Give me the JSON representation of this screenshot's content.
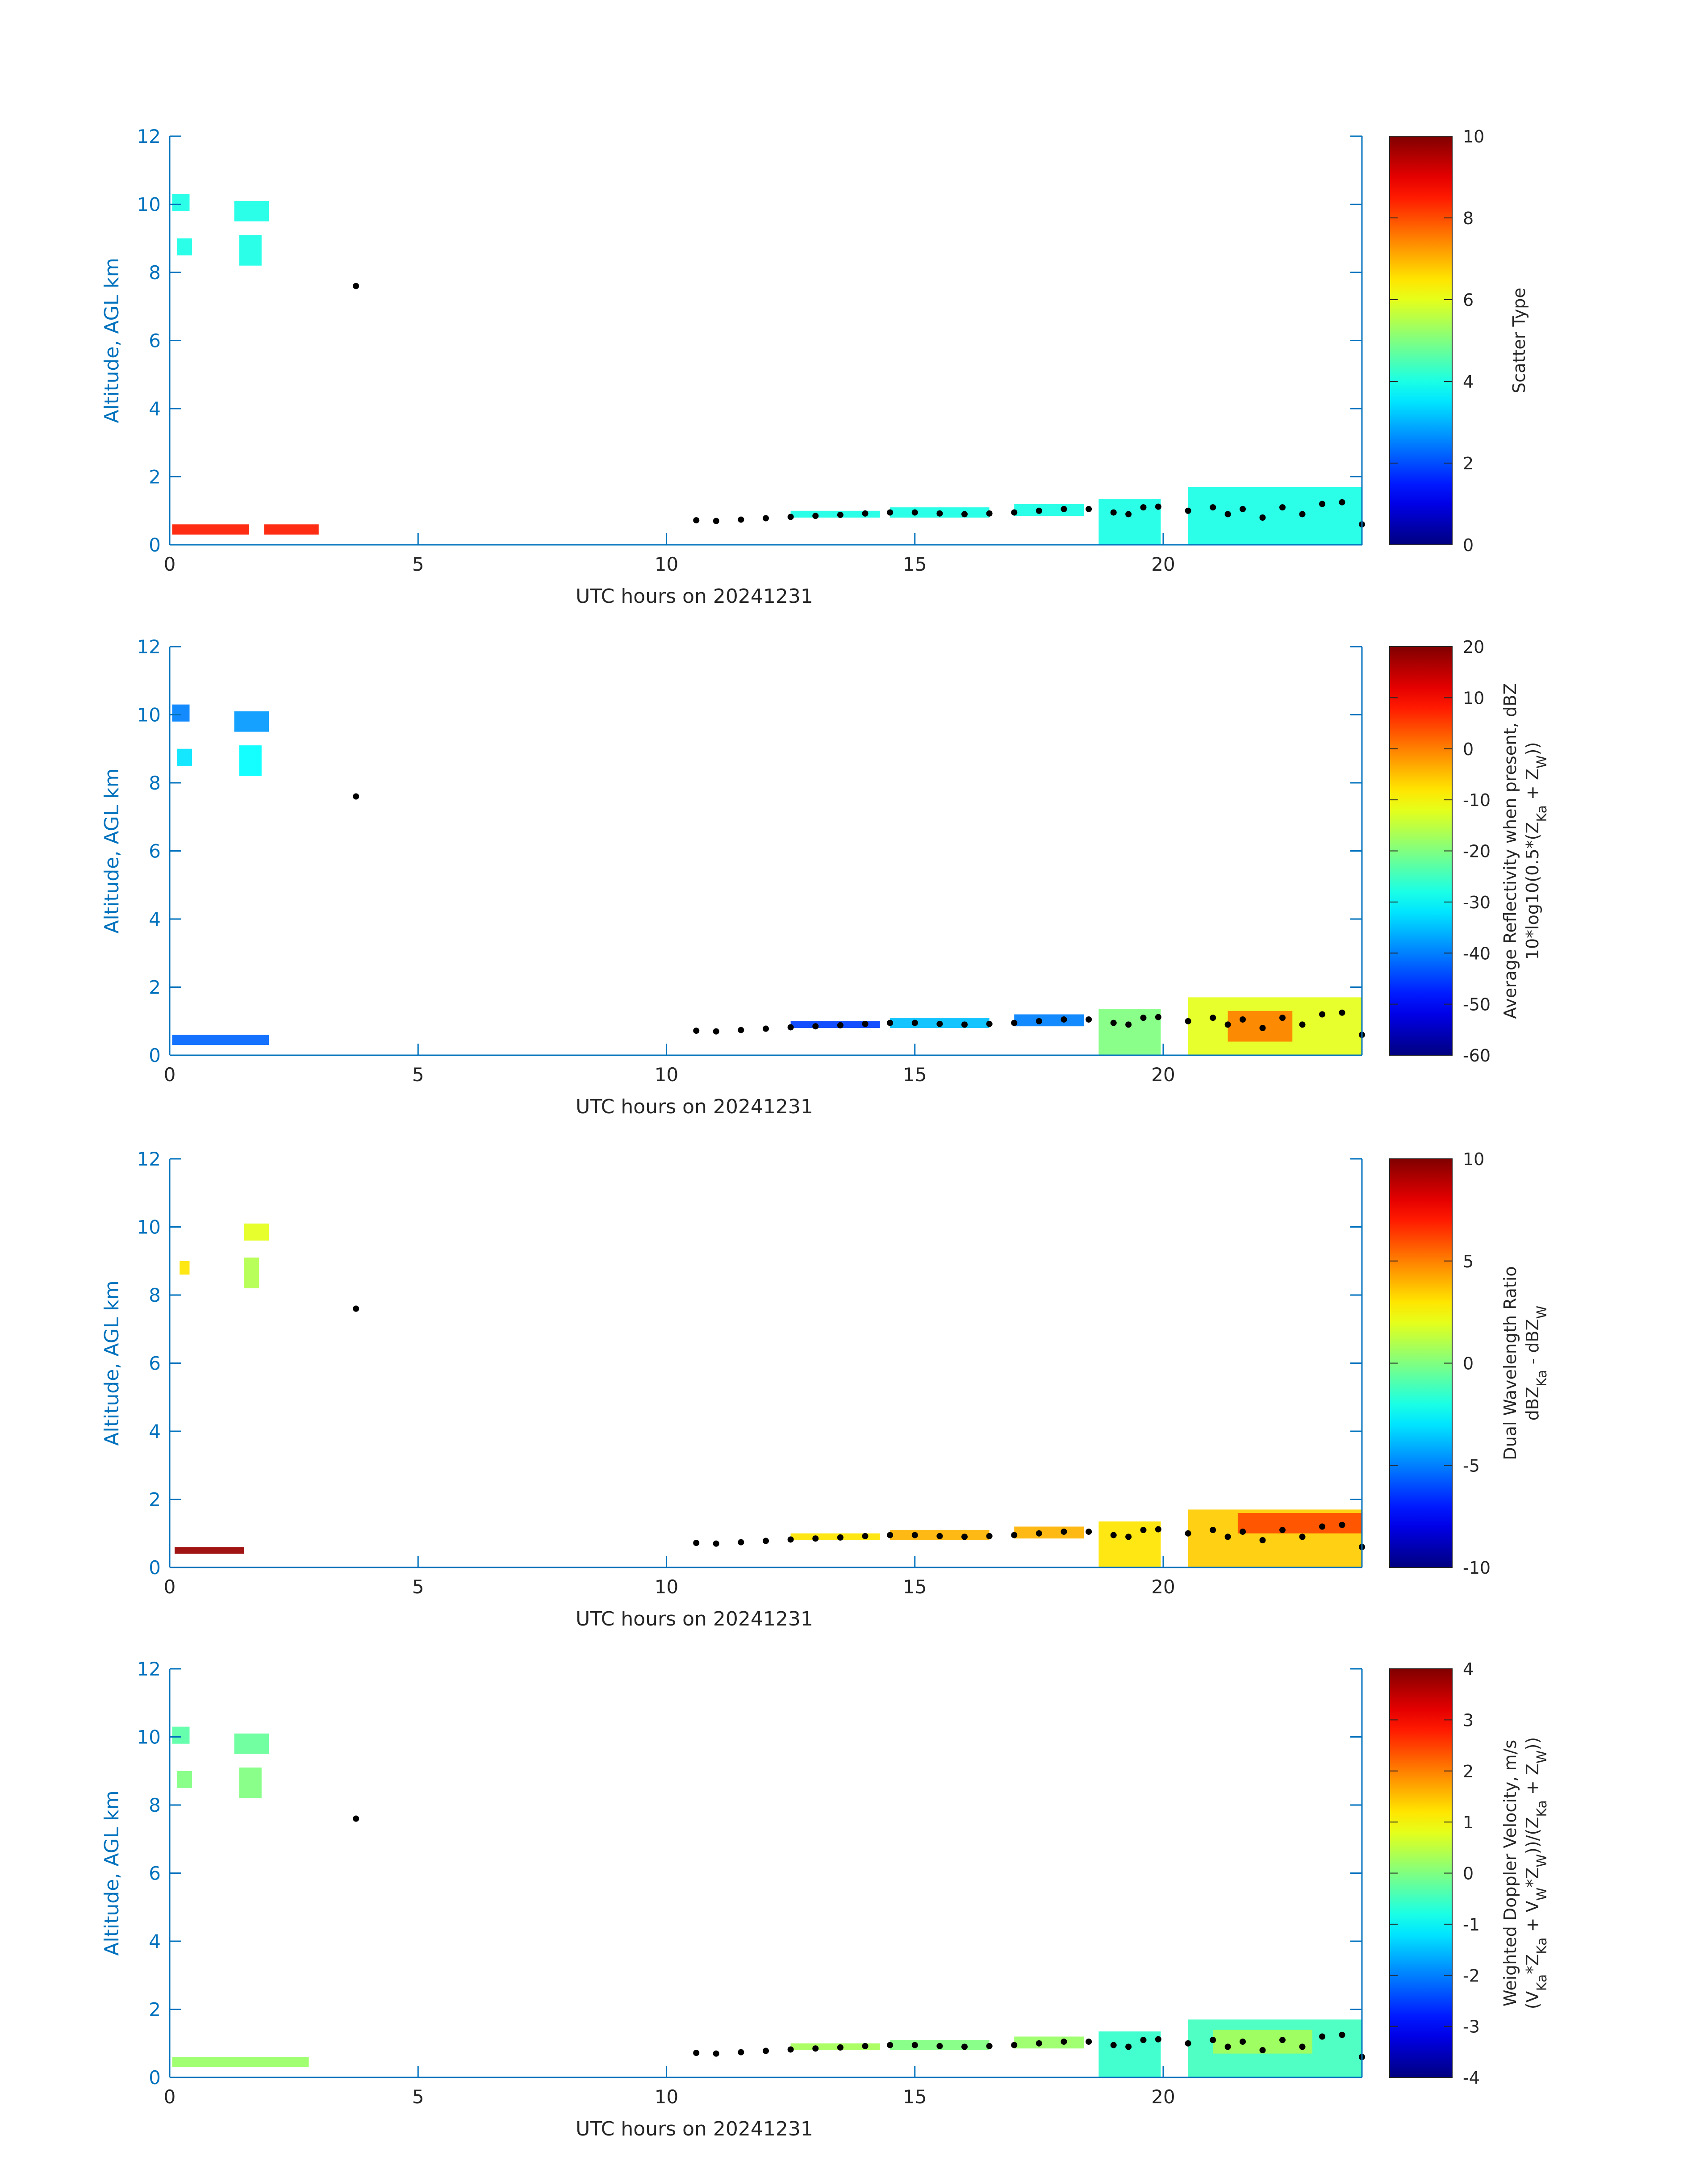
{
  "figure": {
    "background": "#ffffff",
    "axis_color": "#0072bd",
    "cloud_base_color": "#000000"
  },
  "chart_data": [
    {
      "type": "heatmap",
      "xlabel": "UTC hours on 20241231",
      "ylabel": "Altitude, AGL km",
      "xlim": [
        0,
        24
      ],
      "ylim": [
        0,
        12
      ],
      "xticks": [
        "0",
        "5",
        "10",
        "15",
        "20"
      ],
      "yticks": [
        "0",
        "2",
        "4",
        "6",
        "8",
        "10",
        "12"
      ],
      "colorbar": {
        "colormap": "jet",
        "range": [
          0,
          10
        ],
        "ticks": [
          "0",
          "2",
          "4",
          "6",
          "8",
          "10"
        ],
        "label_lines": [
          "Scatter Type"
        ]
      },
      "regions": [
        {
          "x": [
            0.05,
            0.4
          ],
          "y": [
            9.8,
            10.3
          ],
          "value": 4
        },
        {
          "x": [
            0.15,
            0.45
          ],
          "y": [
            8.5,
            9.0
          ],
          "value": 4
        },
        {
          "x": [
            1.3,
            2.0
          ],
          "y": [
            9.5,
            10.1
          ],
          "value": 4
        },
        {
          "x": [
            1.4,
            1.85
          ],
          "y": [
            8.2,
            9.1
          ],
          "value": 4
        },
        {
          "x": [
            0.05,
            1.6
          ],
          "y": [
            0.3,
            0.6
          ],
          "value": 8.5
        },
        {
          "x": [
            1.9,
            3.0
          ],
          "y": [
            0.3,
            0.6
          ],
          "value": 8.5
        },
        {
          "x": [
            12.5,
            14.3
          ],
          "y": [
            0.8,
            1.0
          ],
          "value": 4
        },
        {
          "x": [
            14.5,
            16.5
          ],
          "y": [
            0.8,
            1.1
          ],
          "value": 4
        },
        {
          "x": [
            17.0,
            18.4
          ],
          "y": [
            0.85,
            1.2
          ],
          "value": 4
        },
        {
          "x": [
            18.7,
            19.95
          ],
          "y": [
            0.0,
            1.35
          ],
          "value": 4
        },
        {
          "x": [
            20.5,
            24.0
          ],
          "y": [
            0.0,
            1.7
          ],
          "value": 4
        }
      ],
      "cloud_base": {
        "x": [
          3.75,
          10.6,
          11.0,
          11.5,
          12.0,
          12.5,
          13.0,
          13.5,
          14.0,
          14.5,
          15.0,
          15.5,
          16.0,
          16.5,
          17.0,
          17.5,
          18.0,
          18.5,
          19.0,
          19.3,
          19.6,
          19.9,
          20.5,
          21.0,
          21.3,
          21.6,
          22.0,
          22.4,
          22.8,
          23.2,
          23.6,
          24.0
        ],
        "y": [
          7.6,
          0.72,
          0.7,
          0.74,
          0.78,
          0.82,
          0.85,
          0.88,
          0.92,
          0.95,
          0.95,
          0.92,
          0.9,
          0.92,
          0.95,
          1.0,
          1.05,
          1.05,
          0.95,
          0.9,
          1.1,
          1.12,
          1.0,
          1.1,
          0.9,
          1.05,
          0.8,
          1.1,
          0.9,
          1.2,
          1.25,
          0.6
        ]
      }
    },
    {
      "type": "heatmap",
      "xlabel": "UTC hours on 20241231",
      "ylabel": "Altitude, AGL km",
      "xlim": [
        0,
        24
      ],
      "ylim": [
        0,
        12
      ],
      "xticks": [
        "0",
        "5",
        "10",
        "15",
        "20"
      ],
      "yticks": [
        "0",
        "2",
        "4",
        "6",
        "8",
        "10",
        "12"
      ],
      "colorbar": {
        "colormap": "jet",
        "range": [
          -60,
          20
        ],
        "ticks": [
          "-60",
          "-50",
          "-40",
          "-30",
          "-20",
          "-10",
          "0",
          "10",
          "20"
        ],
        "label_lines": [
          "Average Reflectivity when present, dBZ",
          "10*log10(0.5*(Z_Ka + Z_W))"
        ]
      },
      "regions": [
        {
          "x": [
            0.05,
            0.4
          ],
          "y": [
            9.8,
            10.3
          ],
          "value": -40
        },
        {
          "x": [
            0.15,
            0.45
          ],
          "y": [
            8.5,
            9.0
          ],
          "value": -32
        },
        {
          "x": [
            1.3,
            2.0
          ],
          "y": [
            9.5,
            10.1
          ],
          "value": -38
        },
        {
          "x": [
            1.4,
            1.85
          ],
          "y": [
            8.2,
            9.1
          ],
          "value": -30
        },
        {
          "x": [
            0.05,
            2.0
          ],
          "y": [
            0.3,
            0.6
          ],
          "value": -42
        },
        {
          "x": [
            12.5,
            14.3
          ],
          "y": [
            0.8,
            1.0
          ],
          "value": -45
        },
        {
          "x": [
            14.5,
            16.5
          ],
          "y": [
            0.8,
            1.1
          ],
          "value": -35
        },
        {
          "x": [
            17.0,
            18.4
          ],
          "y": [
            0.85,
            1.2
          ],
          "value": -40
        },
        {
          "x": [
            18.7,
            19.95
          ],
          "y": [
            0.0,
            1.35
          ],
          "value": -20
        },
        {
          "x": [
            20.5,
            24.0
          ],
          "y": [
            0.0,
            1.7
          ],
          "value": -12
        },
        {
          "x": [
            21.3,
            22.6
          ],
          "y": [
            0.4,
            1.3
          ],
          "value": 0
        }
      ],
      "cloud_base": {
        "x": [
          3.75,
          10.6,
          11.0,
          11.5,
          12.0,
          12.5,
          13.0,
          13.5,
          14.0,
          14.5,
          15.0,
          15.5,
          16.0,
          16.5,
          17.0,
          17.5,
          18.0,
          18.5,
          19.0,
          19.3,
          19.6,
          19.9,
          20.5,
          21.0,
          21.3,
          21.6,
          22.0,
          22.4,
          22.8,
          23.2,
          23.6,
          24.0
        ],
        "y": [
          7.6,
          0.72,
          0.7,
          0.74,
          0.78,
          0.82,
          0.85,
          0.88,
          0.92,
          0.95,
          0.95,
          0.92,
          0.9,
          0.92,
          0.95,
          1.0,
          1.05,
          1.05,
          0.95,
          0.9,
          1.1,
          1.12,
          1.0,
          1.1,
          0.9,
          1.05,
          0.8,
          1.1,
          0.9,
          1.2,
          1.25,
          0.6
        ]
      }
    },
    {
      "type": "heatmap",
      "xlabel": "UTC hours on 20241231",
      "ylabel": "Altitude, AGL km",
      "xlim": [
        0,
        24
      ],
      "ylim": [
        0,
        12
      ],
      "xticks": [
        "0",
        "5",
        "10",
        "15",
        "20"
      ],
      "yticks": [
        "0",
        "2",
        "4",
        "6",
        "8",
        "10",
        "12"
      ],
      "colorbar": {
        "colormap": "jet",
        "range": [
          -10,
          10
        ],
        "ticks": [
          "-10",
          "-5",
          "0",
          "5",
          "10"
        ],
        "label_lines": [
          "Dual Wavelength Ratio",
          "dBZ_Ka - dBZ_W"
        ]
      },
      "regions": [
        {
          "x": [
            0.2,
            0.4
          ],
          "y": [
            8.6,
            9.0
          ],
          "value": 3
        },
        {
          "x": [
            1.5,
            2.0
          ],
          "y": [
            9.6,
            10.1
          ],
          "value": 2
        },
        {
          "x": [
            1.5,
            1.8
          ],
          "y": [
            8.2,
            9.1
          ],
          "value": 1
        },
        {
          "x": [
            0.1,
            1.5
          ],
          "y": [
            0.4,
            0.6
          ],
          "value": 9.5
        },
        {
          "x": [
            12.5,
            14.3
          ],
          "y": [
            0.8,
            1.0
          ],
          "value": 3
        },
        {
          "x": [
            14.5,
            16.5
          ],
          "y": [
            0.8,
            1.1
          ],
          "value": 4
        },
        {
          "x": [
            17.0,
            18.4
          ],
          "y": [
            0.85,
            1.2
          ],
          "value": 4
        },
        {
          "x": [
            18.7,
            19.95
          ],
          "y": [
            0.0,
            1.35
          ],
          "value": 3
        },
        {
          "x": [
            20.5,
            24.0
          ],
          "y": [
            0.0,
            1.7
          ],
          "value": 3.5
        },
        {
          "x": [
            21.5,
            24.0
          ],
          "y": [
            1.0,
            1.6
          ],
          "value": 6
        }
      ],
      "cloud_base": {
        "x": [
          3.75,
          10.6,
          11.0,
          11.5,
          12.0,
          12.5,
          13.0,
          13.5,
          14.0,
          14.5,
          15.0,
          15.5,
          16.0,
          16.5,
          17.0,
          17.5,
          18.0,
          18.5,
          19.0,
          19.3,
          19.6,
          19.9,
          20.5,
          21.0,
          21.3,
          21.6,
          22.0,
          22.4,
          22.8,
          23.2,
          23.6,
          24.0
        ],
        "y": [
          7.6,
          0.72,
          0.7,
          0.74,
          0.78,
          0.82,
          0.85,
          0.88,
          0.92,
          0.95,
          0.95,
          0.92,
          0.9,
          0.92,
          0.95,
          1.0,
          1.05,
          1.05,
          0.95,
          0.9,
          1.1,
          1.12,
          1.0,
          1.1,
          0.9,
          1.05,
          0.8,
          1.1,
          0.9,
          1.2,
          1.25,
          0.6
        ]
      }
    },
    {
      "type": "heatmap",
      "xlabel": "UTC hours on 20241231",
      "ylabel": "Altitude, AGL km",
      "xlim": [
        0,
        24
      ],
      "ylim": [
        0,
        12
      ],
      "xticks": [
        "0",
        "5",
        "10",
        "15",
        "20"
      ],
      "yticks": [
        "0",
        "2",
        "4",
        "6",
        "8",
        "10",
        "12"
      ],
      "colorbar": {
        "colormap": "jet",
        "range": [
          -4,
          4
        ],
        "ticks": [
          "-4",
          "-3",
          "-2",
          "-1",
          "0",
          "1",
          "2",
          "3",
          "4"
        ],
        "label_lines": [
          "Weighted Doppler Velocity, m/s",
          "(V_Ka*Z_Ka + V_W*Z_W))/(Z_Ka + Z_W))"
        ]
      },
      "regions": [
        {
          "x": [
            0.05,
            0.4
          ],
          "y": [
            9.8,
            10.3
          ],
          "value": -0.3
        },
        {
          "x": [
            0.15,
            0.45
          ],
          "y": [
            8.5,
            9.0
          ],
          "value": 0
        },
        {
          "x": [
            1.3,
            2.0
          ],
          "y": [
            9.5,
            10.1
          ],
          "value": -0.2
        },
        {
          "x": [
            1.4,
            1.85
          ],
          "y": [
            8.2,
            9.1
          ],
          "value": 0
        },
        {
          "x": [
            0.05,
            2.8
          ],
          "y": [
            0.3,
            0.6
          ],
          "value": 0.2
        },
        {
          "x": [
            12.5,
            14.3
          ],
          "y": [
            0.8,
            1.0
          ],
          "value": 0.3
        },
        {
          "x": [
            14.5,
            16.5
          ],
          "y": [
            0.8,
            1.1
          ],
          "value": 0
        },
        {
          "x": [
            17.0,
            18.4
          ],
          "y": [
            0.85,
            1.2
          ],
          "value": 0.2
        },
        {
          "x": [
            18.7,
            19.95
          ],
          "y": [
            0.0,
            1.35
          ],
          "value": -0.6
        },
        {
          "x": [
            20.5,
            24.0
          ],
          "y": [
            0.0,
            1.7
          ],
          "value": -0.5
        },
        {
          "x": [
            21.0,
            23.0
          ],
          "y": [
            0.7,
            1.4
          ],
          "value": 0.3
        }
      ],
      "cloud_base": {
        "x": [
          3.75,
          10.6,
          11.0,
          11.5,
          12.0,
          12.5,
          13.0,
          13.5,
          14.0,
          14.5,
          15.0,
          15.5,
          16.0,
          16.5,
          17.0,
          17.5,
          18.0,
          18.5,
          19.0,
          19.3,
          19.6,
          19.9,
          20.5,
          21.0,
          21.3,
          21.6,
          22.0,
          22.4,
          22.8,
          23.2,
          23.6,
          24.0
        ],
        "y": [
          7.6,
          0.72,
          0.7,
          0.74,
          0.78,
          0.82,
          0.85,
          0.88,
          0.92,
          0.95,
          0.95,
          0.92,
          0.9,
          0.92,
          0.95,
          1.0,
          1.05,
          1.05,
          0.95,
          0.9,
          1.1,
          1.12,
          1.0,
          1.1,
          0.9,
          1.05,
          0.8,
          1.1,
          0.9,
          1.2,
          1.25,
          0.6
        ]
      }
    }
  ]
}
